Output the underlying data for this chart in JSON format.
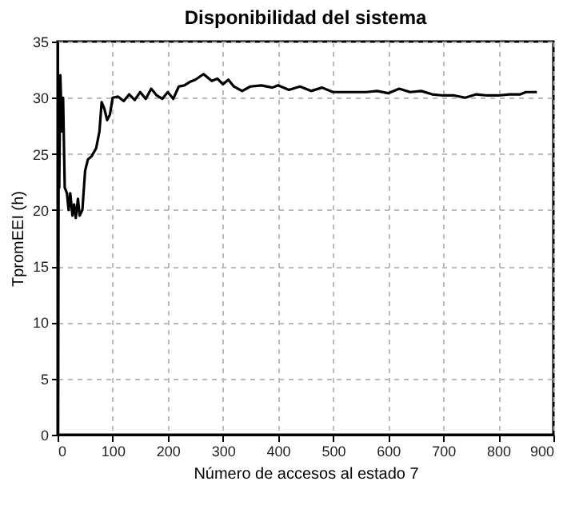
{
  "chart_data": {
    "type": "line",
    "title": "Disponibilidad del sistema",
    "xlabel": "Número de accesos al estado 7",
    "ylabel": "TpromEEI (h)",
    "x": [
      1,
      2,
      3,
      5,
      8,
      10,
      13,
      17,
      20,
      23,
      27,
      30,
      33,
      37,
      40,
      45,
      50,
      55,
      62,
      70,
      76,
      80,
      85,
      90,
      95,
      100,
      110,
      120,
      130,
      140,
      150,
      160,
      170,
      180,
      190,
      200,
      210,
      220,
      230,
      240,
      250,
      265,
      280,
      290,
      300,
      310,
      320,
      335,
      350,
      370,
      390,
      400,
      420,
      440,
      460,
      480,
      500,
      530,
      560,
      580,
      600,
      620,
      640,
      660,
      680,
      700,
      720,
      740,
      760,
      780,
      800,
      820,
      840,
      850,
      870
    ],
    "series": [
      {
        "color": "#000000",
        "values": [
          0,
          26.5,
          22,
          32,
          27,
          30,
          22,
          21.5,
          20,
          21.5,
          19.5,
          20.5,
          19.3,
          21,
          19.5,
          20,
          23.5,
          24.5,
          24.8,
          25.5,
          27,
          29.6,
          29,
          28,
          28.5,
          30,
          30.1,
          29.7,
          30.3,
          29.8,
          30.5,
          29.9,
          30.8,
          30.2,
          29.9,
          30.5,
          29.9,
          31,
          31.1,
          31.4,
          31.6,
          32.1,
          31.5,
          31.7,
          31.2,
          31.6,
          31,
          30.6,
          31,
          31.1,
          30.9,
          31.1,
          30.7,
          31,
          30.6,
          30.9,
          30.5,
          30.5,
          30.5,
          30.6,
          30.4,
          30.8,
          30.5,
          30.6,
          30.3,
          30.2,
          30.2,
          30,
          30.3,
          30.2,
          30.2,
          30.3,
          30.3,
          30.5,
          30.5
        ]
      }
    ],
    "xlim": [
      0,
      900
    ],
    "xticks": [
      0,
      100,
      200,
      300,
      400,
      500,
      600,
      700,
      800,
      900
    ],
    "ylim": [
      0,
      35
    ],
    "yticks": [
      0,
      5,
      10,
      15,
      20,
      25,
      30,
      35
    ],
    "grid": true,
    "line_style": "solid",
    "marker": "none"
  }
}
